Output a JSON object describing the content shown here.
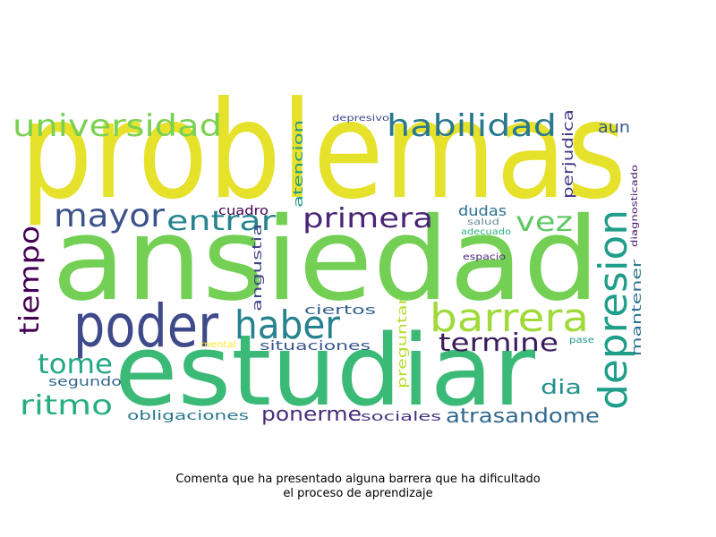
{
  "caption": {
    "line1": "Comenta que ha presentado alguna barrera que ha dificultado",
    "line2": "el proceso de aprendizaje"
  },
  "words": [
    {
      "text": "problemas",
      "color": "#e6e12a",
      "weight": 1.0
    },
    {
      "text": "ansiedad",
      "color": "#73d055",
      "weight": 0.95
    },
    {
      "text": "estudiar",
      "color": "#3aba76",
      "weight": 0.85
    },
    {
      "text": "poder",
      "color": "#3e4a89",
      "weight": 0.5
    },
    {
      "text": "haber",
      "color": "#26828e",
      "weight": 0.38
    },
    {
      "text": "barrera",
      "color": "#a0da39",
      "weight": 0.38
    },
    {
      "text": "depresion",
      "color": "#1f9e89",
      "weight": 0.38
    },
    {
      "text": "universidad",
      "color": "#7ad151",
      "weight": 0.3
    },
    {
      "text": "habilidad",
      "color": "#2a788e",
      "weight": 0.3
    },
    {
      "text": "mayor",
      "color": "#3b528b",
      "weight": 0.3
    },
    {
      "text": "entrar",
      "color": "#25848e",
      "weight": 0.25
    },
    {
      "text": "primera",
      "color": "#482576",
      "weight": 0.25
    },
    {
      "text": "vez",
      "color": "#5ec962",
      "weight": 0.25
    },
    {
      "text": "tiempo",
      "color": "#440154",
      "weight": 0.25
    },
    {
      "text": "termine",
      "color": "#3b1c5c",
      "weight": 0.25
    },
    {
      "text": "tome",
      "color": "#22a884",
      "weight": 0.25
    },
    {
      "text": "ritmo",
      "color": "#29af7f",
      "weight": 0.25
    },
    {
      "text": "atrasandome",
      "color": "#31688e",
      "weight": 0.18
    },
    {
      "text": "ponerme",
      "color": "#472d7b",
      "weight": 0.18
    },
    {
      "text": "dia",
      "color": "#21918c",
      "weight": 0.18
    },
    {
      "text": "aun",
      "color": "#355f8d",
      "weight": 0.12
    },
    {
      "text": "perjudica",
      "color": "#443a83",
      "weight": 0.12
    },
    {
      "text": "atencion",
      "color": "#1f988b",
      "weight": 0.12
    },
    {
      "text": "angustia",
      "color": "#414487",
      "weight": 0.12
    },
    {
      "text": "mantener",
      "color": "#2c728e",
      "weight": 0.12
    },
    {
      "text": "dudas",
      "color": "#2d708e",
      "weight": 0.12
    },
    {
      "text": "cuadro",
      "color": "#440154",
      "weight": 0.12
    },
    {
      "text": "ciertos",
      "color": "#355f8d",
      "weight": 0.12
    },
    {
      "text": "situaciones",
      "color": "#38588c",
      "weight": 0.12
    },
    {
      "text": "segundo",
      "color": "#31688e",
      "weight": 0.12
    },
    {
      "text": "obligaciones",
      "color": "#2a788e",
      "weight": 0.12
    },
    {
      "text": "sociales",
      "color": "#463480",
      "weight": 0.12
    },
    {
      "text": "preguntar",
      "color": "#b5de2b",
      "weight": 0.1
    },
    {
      "text": "depresivo",
      "color": "#3e4a89",
      "weight": 0.06
    },
    {
      "text": "diagnosticado",
      "color": "#481668",
      "weight": 0.06
    },
    {
      "text": "salud",
      "color": "#6c8a9a",
      "weight": 0.06
    },
    {
      "text": "adecuado",
      "color": "#2eb37c",
      "weight": 0.06
    },
    {
      "text": "espacio",
      "color": "#482878",
      "weight": 0.06
    },
    {
      "text": "mental",
      "color": "#fde725",
      "weight": 0.06
    },
    {
      "text": "pase",
      "color": "#1f9a8a",
      "weight": 0.06
    }
  ]
}
